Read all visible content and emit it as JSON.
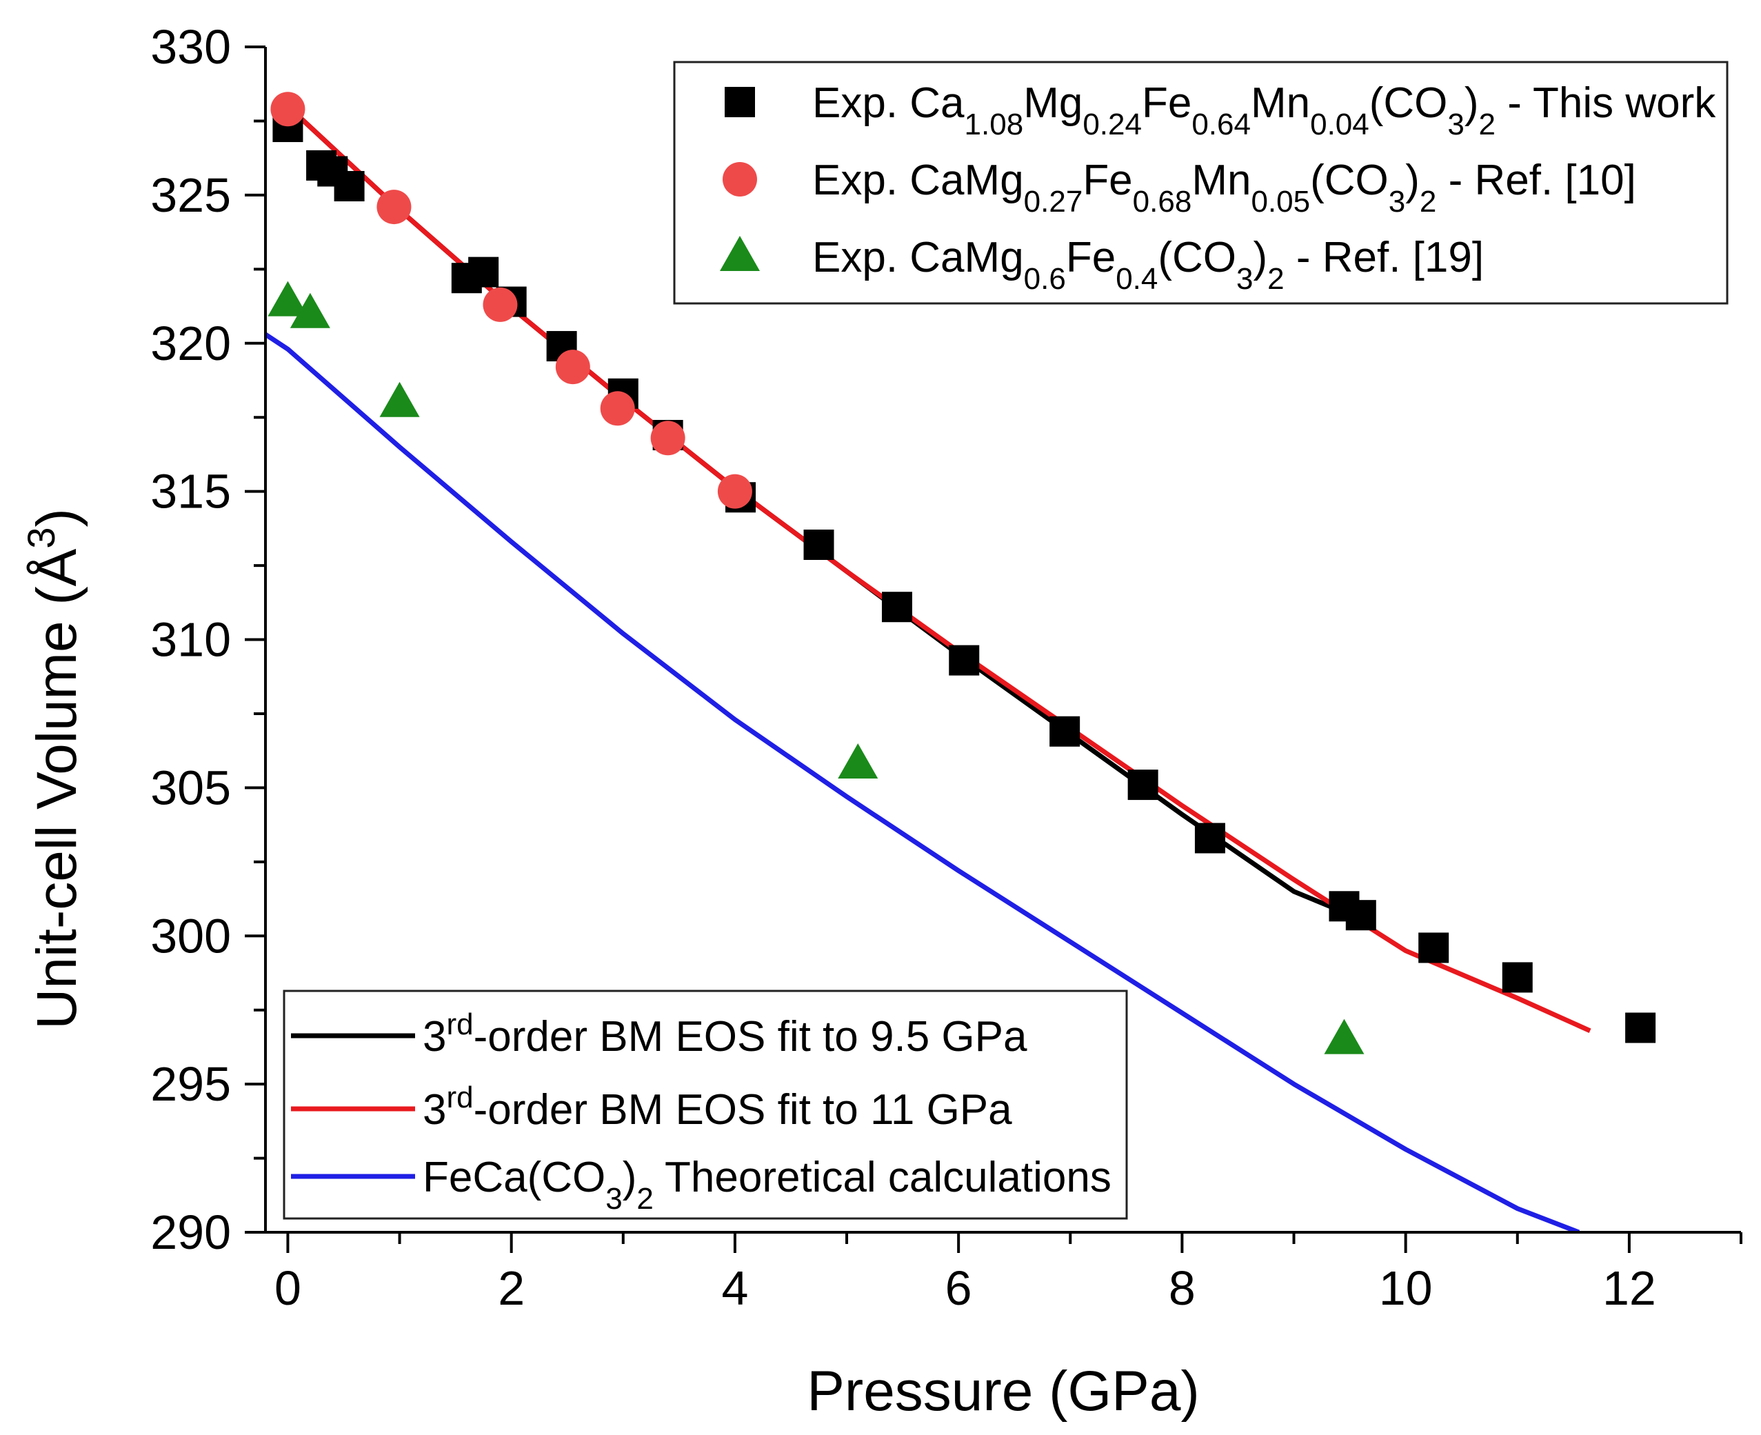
{
  "chart_data": {
    "type": "scatter",
    "xlabel": "Pressure (GPa)",
    "ylabel_main": "Unit-cell Volume (Å",
    "ylabel_sup": "3",
    "ylabel_close": ")",
    "xlim": [
      -0.2,
      13
    ],
    "ylim": [
      290,
      330
    ],
    "x_ticks": [
      0,
      2,
      4,
      6,
      8,
      10,
      12
    ],
    "y_ticks": [
      290,
      295,
      300,
      305,
      310,
      315,
      320,
      325,
      330
    ],
    "marker_series": [
      {
        "name": "Exp. Ca1.08Mg0.24Fe0.64Mn0.04(CO3)2 - This work",
        "label_parts": [
          [
            "Exp. Ca",
            ""
          ],
          [
            "1.08",
            "sub"
          ],
          [
            "Mg",
            ""
          ],
          [
            "0.24",
            "sub"
          ],
          [
            "Fe",
            ""
          ],
          [
            "0.64",
            "sub"
          ],
          [
            "Mn",
            ""
          ],
          [
            "0.04",
            "sub"
          ],
          [
            "(CO",
            ""
          ],
          [
            "3",
            "sub"
          ],
          [
            ")",
            ""
          ],
          [
            "2",
            "sub"
          ],
          [
            " - This work",
            ""
          ]
        ],
        "marker": "square",
        "color": "#000000",
        "points": [
          [
            0.0,
            327.3
          ],
          [
            0.3,
            326.0
          ],
          [
            0.4,
            325.8
          ],
          [
            0.55,
            325.3
          ],
          [
            1.6,
            322.2
          ],
          [
            1.75,
            322.4
          ],
          [
            2.0,
            321.4
          ],
          [
            2.45,
            319.9
          ],
          [
            3.0,
            318.3
          ],
          [
            3.4,
            316.9
          ],
          [
            4.05,
            314.8
          ],
          [
            4.75,
            313.2
          ],
          [
            5.45,
            311.1
          ],
          [
            6.05,
            309.3
          ],
          [
            6.95,
            306.9
          ],
          [
            7.65,
            305.1
          ],
          [
            8.25,
            303.3
          ],
          [
            9.45,
            301.0
          ],
          [
            9.6,
            300.7
          ],
          [
            10.25,
            299.6
          ],
          [
            11.0,
            298.6
          ],
          [
            12.1,
            296.9
          ]
        ]
      },
      {
        "name": "Exp. CaMg0.27Fe0.68Mn0.05(CO3)2 - Ref. [10]",
        "label_parts": [
          [
            "Exp. CaMg",
            ""
          ],
          [
            "0.27",
            "sub"
          ],
          [
            "Fe",
            ""
          ],
          [
            "0.68",
            "sub"
          ],
          [
            "Mn",
            ""
          ],
          [
            "0.05",
            "sub"
          ],
          [
            "(CO",
            ""
          ],
          [
            "3",
            "sub"
          ],
          [
            ")",
            ""
          ],
          [
            "2",
            "sub"
          ],
          [
            " - Ref. [10]",
            ""
          ]
        ],
        "marker": "circle",
        "color": "#ef4a4a",
        "points": [
          [
            0.0,
            327.9
          ],
          [
            0.95,
            324.6
          ],
          [
            1.9,
            321.3
          ],
          [
            2.55,
            319.2
          ],
          [
            2.95,
            317.8
          ],
          [
            3.4,
            316.8
          ],
          [
            4.0,
            315.0
          ]
        ]
      },
      {
        "name": "Exp. CaMg0.6Fe0.4(CO3)2 - Ref. [19]",
        "label_parts": [
          [
            "Exp. CaMg",
            ""
          ],
          [
            "0.6",
            "sub"
          ],
          [
            "Fe",
            ""
          ],
          [
            "0.4",
            "sub"
          ],
          [
            "(CO",
            ""
          ],
          [
            "3",
            "sub"
          ],
          [
            ")",
            ""
          ],
          [
            "2",
            "sub"
          ],
          [
            " - Ref. [19]",
            ""
          ]
        ],
        "marker": "triangle",
        "color": "#1a8a1a",
        "points": [
          [
            0.0,
            321.4
          ],
          [
            0.2,
            321.0
          ],
          [
            1.0,
            318.0
          ],
          [
            5.1,
            305.8
          ],
          [
            9.45,
            296.5
          ]
        ]
      }
    ],
    "line_series": [
      {
        "name": "3rd-order BM EOS fit to 9.5 GPa",
        "label_parts": [
          [
            "3",
            ""
          ],
          [
            "rd",
            "sup"
          ],
          [
            "-order BM EOS fit to 9.5 GPa",
            ""
          ]
        ],
        "color": "#000000",
        "points": [
          [
            0,
            328.0
          ],
          [
            1,
            324.5
          ],
          [
            2,
            321.2
          ],
          [
            3,
            318.1
          ],
          [
            4,
            315.1
          ],
          [
            5,
            312.3
          ],
          [
            6,
            309.5
          ],
          [
            7,
            306.8
          ],
          [
            8,
            304.1
          ],
          [
            9,
            301.5
          ],
          [
            9.45,
            300.8
          ]
        ]
      },
      {
        "name": "3rd-order BM EOS fit to 11 GPa",
        "label_parts": [
          [
            "3",
            ""
          ],
          [
            "rd",
            "sup"
          ],
          [
            "-order BM EOS fit to 11 GPa",
            ""
          ]
        ],
        "color": "#e8191e",
        "points": [
          [
            0,
            328.0
          ],
          [
            1,
            324.5
          ],
          [
            2,
            321.2
          ],
          [
            3,
            318.1
          ],
          [
            4,
            315.1
          ],
          [
            5,
            312.3
          ],
          [
            6,
            309.6
          ],
          [
            7,
            307.0
          ],
          [
            8,
            304.4
          ],
          [
            9,
            301.9
          ],
          [
            10,
            299.5
          ],
          [
            11,
            297.9
          ],
          [
            11.65,
            296.8
          ]
        ]
      },
      {
        "name": "FeCa(CO3)2 Theoretical calculations",
        "label_parts": [
          [
            "FeCa(CO",
            ""
          ],
          [
            "3",
            "sub"
          ],
          [
            ")",
            ""
          ],
          [
            "2",
            "sub"
          ],
          [
            " Theoretical calculations",
            ""
          ]
        ],
        "color": "#1f1fe6",
        "points": [
          [
            -0.2,
            320.3
          ],
          [
            0,
            319.8
          ],
          [
            1,
            316.5
          ],
          [
            2,
            313.3
          ],
          [
            3,
            310.2
          ],
          [
            4,
            307.3
          ],
          [
            5,
            304.7
          ],
          [
            6,
            302.2
          ],
          [
            7,
            299.8
          ],
          [
            8,
            297.4
          ],
          [
            9,
            295.0
          ],
          [
            10,
            292.8
          ],
          [
            11,
            290.8
          ],
          [
            11.55,
            290.0
          ]
        ]
      }
    ]
  }
}
